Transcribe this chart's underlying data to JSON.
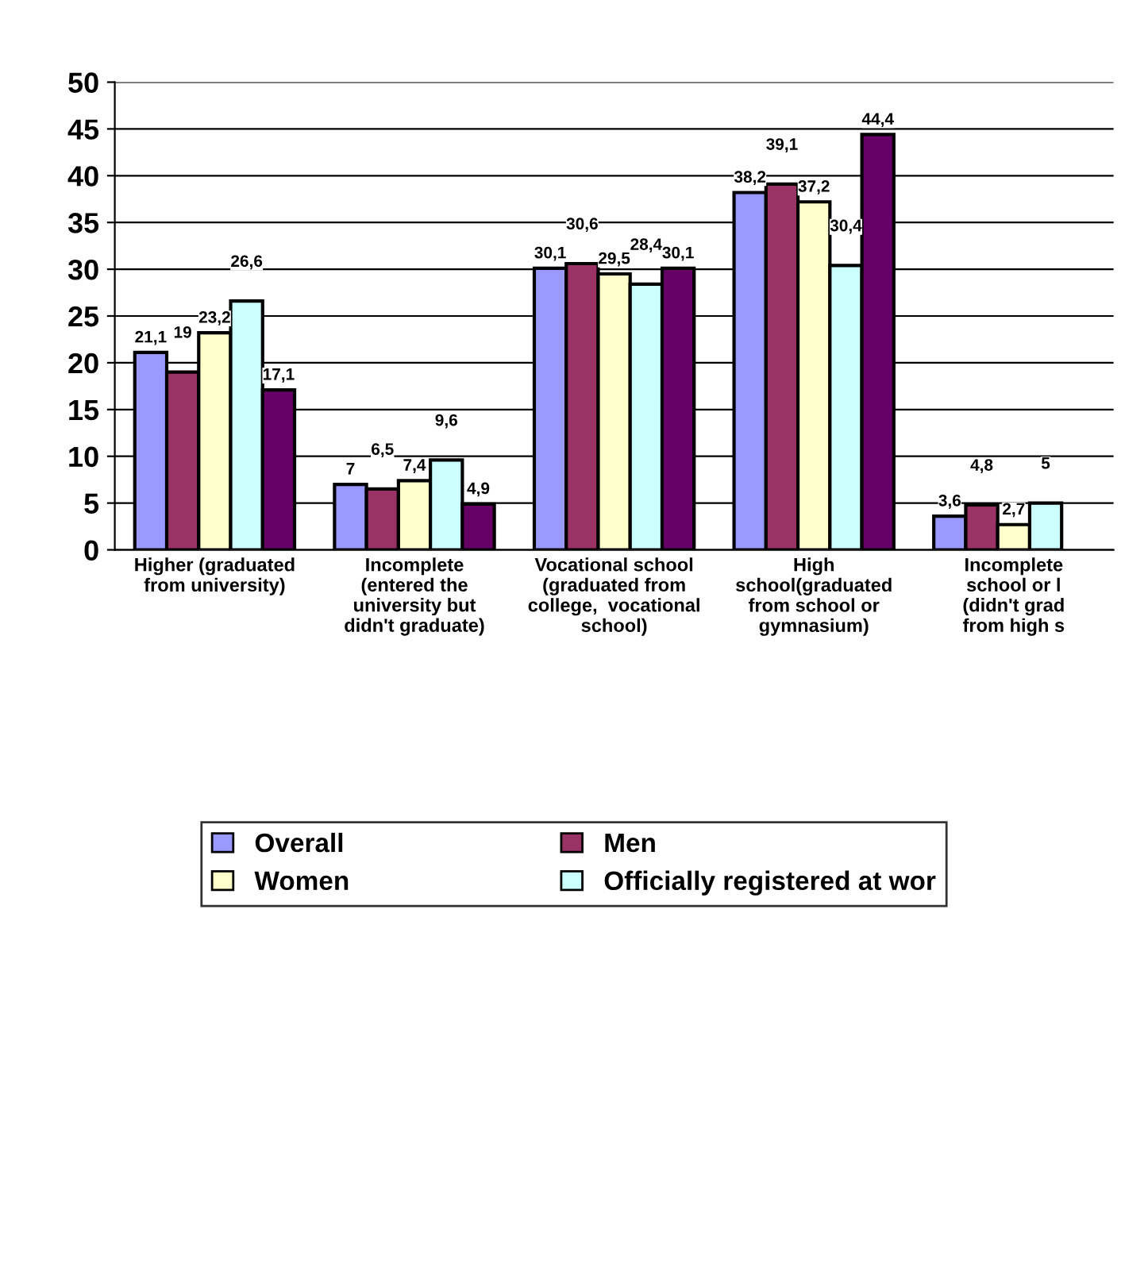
{
  "chart_data": {
    "type": "bar",
    "categories": [
      "Higher (graduated\nfrom university)",
      "Incomplete\n(entered the\nuniversity but\ndidn't graduate)",
      "Vocational school\n(graduated from\ncollege,  vocational\nschool)",
      "High\nschool(graduated\nfrom school or\ngymnasium)",
      "Incomplete\nschool or l\n(didn't grad\nfrom high s"
    ],
    "series": [
      {
        "name": "Overall",
        "color": "#9999ff",
        "values": [
          21.1,
          7,
          30.1,
          38.2,
          3.6
        ],
        "value_labels": [
          "21,1",
          "7",
          "30,1",
          "38,2",
          "3,6"
        ]
      },
      {
        "name": "Men",
        "color": "#993366",
        "values": [
          19,
          6.5,
          30.6,
          39.1,
          4.8
        ],
        "value_labels": [
          "19",
          "6,5",
          "30,6",
          "39,1",
          "4,8"
        ]
      },
      {
        "name": "Women",
        "color": "#ffffcc",
        "values": [
          23.2,
          7.4,
          29.5,
          37.2,
          2.7
        ],
        "value_labels": [
          "23,2",
          "7,4",
          "29,5",
          "37,2",
          "2,7"
        ]
      },
      {
        "name": "Officially registered at wor",
        "color": "#ccffff",
        "values": [
          26.6,
          9.6,
          28.4,
          30.4,
          5
        ],
        "value_labels": [
          "26,6",
          "9,6",
          "28,4",
          "30,4",
          "5"
        ]
      },
      {
        "color": "#660066",
        "values": [
          17.1,
          4.9,
          30.1,
          44.4,
          null
        ],
        "value_labels": [
          "17,1",
          "4,9",
          "30,1",
          "44,4",
          null
        ]
      }
    ],
    "ylim": [
      0,
      50
    ],
    "yticks": [
      0,
      5,
      10,
      15,
      20,
      25,
      30,
      35,
      40,
      45,
      50
    ],
    "grid": "y",
    "legend": "bottom"
  }
}
